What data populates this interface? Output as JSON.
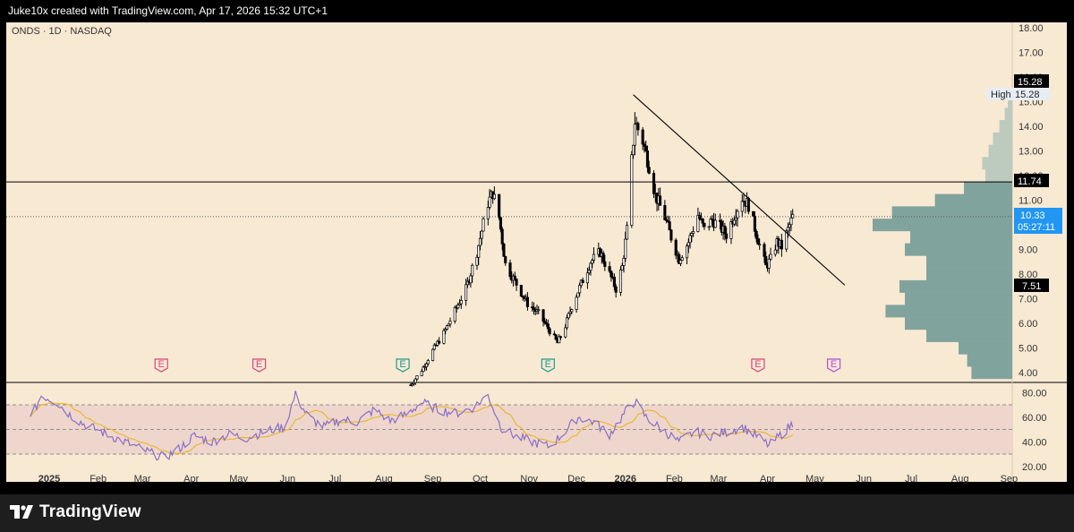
{
  "header": {
    "attribution": "Juke10x created with TradingView.com, Apr 17, 2026 15:32 UTC+1"
  },
  "footer": {
    "brand": "TradingView"
  },
  "colors": {
    "background": "#f8e9d3",
    "candle": "#000000",
    "volume_profile": "#81a39e",
    "volume_profile_light": "#bccbbd",
    "rsi_line": "#8a6ec7",
    "rsi_ma": "#e8b62a",
    "rsi_band": "#eed6cc",
    "last_price_tag": "#2196f3"
  },
  "chart_data": [
    {
      "type": "candlestick",
      "symbol_label": "ONDS · 1D · NASDAQ",
      "y_axis_ticks": [
        "18.00",
        "17.00",
        "16.00",
        "15.00",
        "14.00",
        "13.00",
        "12.00",
        "11.00",
        "10.00",
        "9.00",
        "8.00",
        "7.00",
        "6.00",
        "5.00",
        "4.00"
      ],
      "ylim": [
        3.6,
        18.2
      ],
      "x_axis_labels": [
        "2025",
        "Feb",
        "Mar",
        "Apr",
        "May",
        "Jun",
        "Jul",
        "Aug",
        "Sep",
        "Oct",
        "Nov",
        "Dec",
        "2026",
        "Feb",
        "Mar",
        "Apr",
        "May",
        "Jun",
        "Jul",
        "Aug",
        "Sep"
      ],
      "x_axis_bold": [
        "2025",
        "2026"
      ],
      "high_label": "High",
      "high_value": "15.28",
      "high_tag": "15.28",
      "resistance_level": "11.74",
      "last_price": "10.33",
      "countdown": "05:27:11",
      "low_tag": "7.51",
      "resistance_value": 11.74,
      "last_price_value": 10.33,
      "high_price": 15.28,
      "trendline": {
        "from": [
          "2026-01-06",
          15.28
        ],
        "to": [
          "2026-05-20",
          7.55
        ]
      },
      "earnings_markers": [
        {
          "date": "2025-03-13",
          "label": "E",
          "color": "#d9457b"
        },
        {
          "date": "2025-05-14",
          "label": "E",
          "color": "#d9457b"
        },
        {
          "date": "2025-08-13",
          "label": "E",
          "color": "#1f9a8a"
        },
        {
          "date": "2025-11-13",
          "label": "E",
          "color": "#1f9a8a"
        },
        {
          "date": "2026-03-26",
          "label": "E",
          "color": "#d9457b"
        },
        {
          "date": "2026-05-13",
          "label": "E",
          "color": "#b04fd6"
        }
      ],
      "price_path": [
        [
          "2025-08-18",
          3.5
        ],
        [
          "2025-08-25",
          4.1
        ],
        [
          "2025-09-01",
          4.9
        ],
        [
          "2025-09-08",
          5.6
        ],
        [
          "2025-09-15",
          6.5
        ],
        [
          "2025-09-22",
          7.4
        ],
        [
          "2025-09-29",
          8.9
        ],
        [
          "2025-10-06",
          10.9
        ],
        [
          "2025-10-09",
          11.3
        ],
        [
          "2025-10-13",
          10.3
        ],
        [
          "2025-10-17",
          8.4
        ],
        [
          "2025-10-24",
          7.6
        ],
        [
          "2025-10-31",
          6.8
        ],
        [
          "2025-11-07",
          6.4
        ],
        [
          "2025-11-14",
          5.7
        ],
        [
          "2025-11-19",
          5.2
        ],
        [
          "2025-11-24",
          5.9
        ],
        [
          "2025-11-28",
          6.7
        ],
        [
          "2025-12-04",
          7.6
        ],
        [
          "2025-12-10",
          8.5
        ],
        [
          "2025-12-16",
          8.9
        ],
        [
          "2025-12-22",
          8.0
        ],
        [
          "2025-12-26",
          7.4
        ],
        [
          "2025-12-30",
          8.3
        ],
        [
          "2026-01-02",
          9.8
        ],
        [
          "2026-01-05",
          12.6
        ],
        [
          "2026-01-07",
          14.2
        ],
        [
          "2026-01-12",
          13.4
        ],
        [
          "2026-01-16",
          12.4
        ],
        [
          "2026-01-20",
          11.2
        ],
        [
          "2026-01-26",
          10.3
        ],
        [
          "2026-01-30",
          9.5
        ],
        [
          "2026-02-04",
          8.6
        ],
        [
          "2026-02-10",
          9.3
        ],
        [
          "2026-02-16",
          10.4
        ],
        [
          "2026-02-20",
          9.8
        ],
        [
          "2026-02-25",
          10.2
        ],
        [
          "2026-03-02",
          9.9
        ],
        [
          "2026-03-06",
          9.6
        ],
        [
          "2026-03-11",
          10.4
        ],
        [
          "2026-03-16",
          11.1
        ],
        [
          "2026-03-20",
          10.8
        ],
        [
          "2026-03-26",
          9.4
        ],
        [
          "2026-03-31",
          8.3
        ],
        [
          "2026-04-03",
          8.6
        ],
        [
          "2026-04-07",
          9.3
        ],
        [
          "2026-04-10",
          9.1
        ],
        [
          "2026-04-14",
          9.8
        ],
        [
          "2026-04-17",
          10.33
        ]
      ],
      "volume_profile": [
        {
          "price": 15.0,
          "volume": 4
        },
        {
          "price": 14.5,
          "volume": 7
        },
        {
          "price": 14.0,
          "volume": 12
        },
        {
          "price": 13.5,
          "volume": 18
        },
        {
          "price": 13.0,
          "volume": 22
        },
        {
          "price": 12.5,
          "volume": 28
        },
        {
          "price": 12.0,
          "volume": 25
        },
        {
          "price": 11.5,
          "volume": 45
        },
        {
          "price": 11.0,
          "volume": 72
        },
        {
          "price": 10.5,
          "volume": 112
        },
        {
          "price": 10.0,
          "volume": 130
        },
        {
          "price": 9.5,
          "volume": 95
        },
        {
          "price": 9.0,
          "volume": 100
        },
        {
          "price": 8.5,
          "volume": 80
        },
        {
          "price": 8.0,
          "volume": 80
        },
        {
          "price": 7.5,
          "volume": 105
        },
        {
          "price": 7.0,
          "volume": 100
        },
        {
          "price": 6.5,
          "volume": 118
        },
        {
          "price": 6.0,
          "volume": 100
        },
        {
          "price": 5.5,
          "volume": 80
        },
        {
          "price": 5.0,
          "volume": 50
        },
        {
          "price": 4.5,
          "volume": 42
        },
        {
          "price": 4.0,
          "volume": 38
        }
      ]
    },
    {
      "type": "line",
      "name": "RSI",
      "y_axis_ticks": [
        "80.00",
        "60.00",
        "40.00",
        "20.00"
      ],
      "ylim": [
        18,
        84
      ],
      "bands": [
        30,
        50,
        70
      ],
      "rsi_path": [
        [
          "2024-12-20",
          58
        ],
        [
          "2024-12-27",
          78
        ],
        [
          "2025-01-06",
          72
        ],
        [
          "2025-01-14",
          62
        ],
        [
          "2025-01-22",
          55
        ],
        [
          "2025-02-03",
          48
        ],
        [
          "2025-02-14",
          42
        ],
        [
          "2025-02-25",
          36
        ],
        [
          "2025-03-06",
          31
        ],
        [
          "2025-03-15",
          27
        ],
        [
          "2025-03-24",
          34
        ],
        [
          "2025-04-03",
          45
        ],
        [
          "2025-04-14",
          40
        ],
        [
          "2025-04-25",
          46
        ],
        [
          "2025-05-06",
          43
        ],
        [
          "2025-05-19",
          49
        ],
        [
          "2025-05-30",
          52
        ],
        [
          "2025-06-06",
          78
        ],
        [
          "2025-06-14",
          60
        ],
        [
          "2025-06-24",
          52
        ],
        [
          "2025-07-05",
          58
        ],
        [
          "2025-07-15",
          56
        ],
        [
          "2025-07-26",
          66
        ],
        [
          "2025-08-05",
          57
        ],
        [
          "2025-08-15",
          62
        ],
        [
          "2025-08-25",
          72
        ],
        [
          "2025-09-05",
          66
        ],
        [
          "2025-09-16",
          63
        ],
        [
          "2025-09-27",
          68
        ],
        [
          "2025-10-06",
          78
        ],
        [
          "2025-10-14",
          52
        ],
        [
          "2025-10-24",
          44
        ],
        [
          "2025-11-03",
          40
        ],
        [
          "2025-11-14",
          36
        ],
        [
          "2025-11-22",
          46
        ],
        [
          "2025-12-02",
          60
        ],
        [
          "2025-12-12",
          56
        ],
        [
          "2025-12-22",
          46
        ],
        [
          "2026-01-02",
          66
        ],
        [
          "2026-01-07",
          73
        ],
        [
          "2026-01-14",
          60
        ],
        [
          "2026-01-24",
          50
        ],
        [
          "2026-02-04",
          40
        ],
        [
          "2026-02-14",
          48
        ],
        [
          "2026-02-24",
          45
        ],
        [
          "2026-03-06",
          48
        ],
        [
          "2026-03-16",
          52
        ],
        [
          "2026-03-26",
          44
        ],
        [
          "2026-04-02",
          37
        ],
        [
          "2026-04-09",
          45
        ],
        [
          "2026-04-17",
          55
        ]
      ]
    }
  ]
}
